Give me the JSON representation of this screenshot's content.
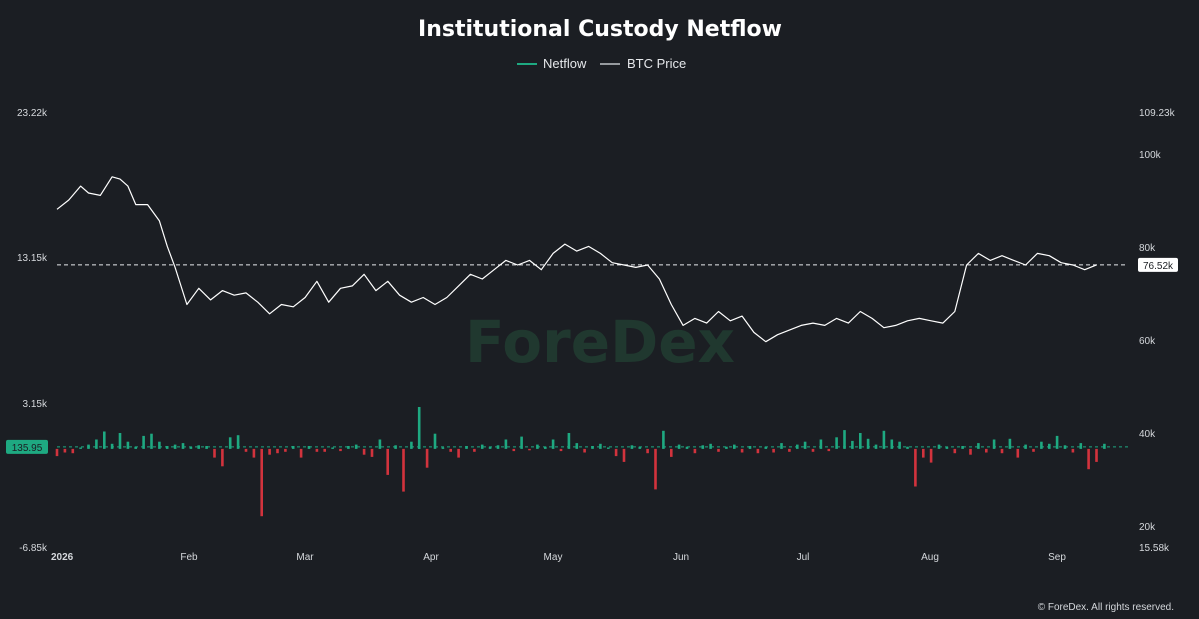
{
  "chart_data": {
    "type": "bar+line",
    "title": "Institutional Custody Netflow",
    "legend": [
      {
        "name": "Netflow",
        "color": "#1ea981"
      },
      {
        "name": "BTC Price",
        "color": "#bfc3c8"
      }
    ],
    "legend_placement": "top-center",
    "watermark": "ForeDex",
    "copyright": "© ForeDex. All rights reserved.",
    "x_start": "2026-01-01",
    "x_end": "2026-09-30",
    "x_tick_labels": [
      "2026",
      "Feb",
      "Mar",
      "Apr",
      "May",
      "Jun",
      "Jul",
      "Aug",
      "Sep"
    ],
    "left_axis": {
      "ticks": [
        "23.22k",
        "13.15k",
        "3.15k",
        "-6.85k"
      ],
      "range": [
        -6850,
        23220
      ]
    },
    "right_axis": {
      "ticks": [
        "109.23k",
        "100k",
        "80k",
        "60k",
        "40k",
        "20k",
        "15.58k"
      ],
      "range": [
        15580,
        109230
      ]
    },
    "current_netflow": {
      "value": 135.95,
      "label": "135.95",
      "color": "#1ea981"
    },
    "current_price": {
      "value": 76520,
      "label": "76.52k",
      "color": "#ffffff"
    },
    "colors": {
      "positive": "#1ea981",
      "negative": "#d2333d",
      "price_line": "#ffffff",
      "background": "#1b1e23"
    },
    "series": [
      {
        "name": "BTC Price",
        "axis": "right",
        "points": [
          [
            "2026-01-01",
            88500
          ],
          [
            "2026-01-04",
            90500
          ],
          [
            "2026-01-07",
            93500
          ],
          [
            "2026-01-09",
            92000
          ],
          [
            "2026-01-12",
            91500
          ],
          [
            "2026-01-15",
            95500
          ],
          [
            "2026-01-17",
            95000
          ],
          [
            "2026-01-19",
            93500
          ],
          [
            "2026-01-21",
            89500
          ],
          [
            "2026-01-24",
            89500
          ],
          [
            "2026-01-27",
            86000
          ],
          [
            "2026-01-29",
            80500
          ],
          [
            "2026-01-31",
            76000
          ],
          [
            "2026-02-03",
            68000
          ],
          [
            "2026-02-06",
            71500
          ],
          [
            "2026-02-09",
            69000
          ],
          [
            "2026-02-12",
            71000
          ],
          [
            "2026-02-15",
            70000
          ],
          [
            "2026-02-18",
            70500
          ],
          [
            "2026-02-21",
            68500
          ],
          [
            "2026-02-24",
            66000
          ],
          [
            "2026-02-27",
            68000
          ],
          [
            "2026-03-02",
            67500
          ],
          [
            "2026-03-05",
            69500
          ],
          [
            "2026-03-08",
            73000
          ],
          [
            "2026-03-11",
            68500
          ],
          [
            "2026-03-14",
            71500
          ],
          [
            "2026-03-17",
            72000
          ],
          [
            "2026-03-20",
            74500
          ],
          [
            "2026-03-23",
            71000
          ],
          [
            "2026-03-26",
            73000
          ],
          [
            "2026-03-29",
            70000
          ],
          [
            "2026-04-01",
            68500
          ],
          [
            "2026-04-04",
            69500
          ],
          [
            "2026-04-07",
            68000
          ],
          [
            "2026-04-10",
            69500
          ],
          [
            "2026-04-13",
            72000
          ],
          [
            "2026-04-16",
            74500
          ],
          [
            "2026-04-19",
            73500
          ],
          [
            "2026-04-22",
            75500
          ],
          [
            "2026-04-25",
            77500
          ],
          [
            "2026-04-28",
            76500
          ],
          [
            "2026-05-01",
            77500
          ],
          [
            "2026-05-04",
            75500
          ],
          [
            "2026-05-07",
            79000
          ],
          [
            "2026-05-10",
            81000
          ],
          [
            "2026-05-13",
            79500
          ],
          [
            "2026-05-16",
            80500
          ],
          [
            "2026-05-19",
            79000
          ],
          [
            "2026-05-22",
            77000
          ],
          [
            "2026-05-25",
            76500
          ],
          [
            "2026-05-28",
            76000
          ],
          [
            "2026-05-31",
            76500
          ],
          [
            "2026-06-03",
            73500
          ],
          [
            "2026-06-06",
            68000
          ],
          [
            "2026-06-09",
            63500
          ],
          [
            "2026-06-12",
            65000
          ],
          [
            "2026-06-15",
            64000
          ],
          [
            "2026-06-18",
            66500
          ],
          [
            "2026-06-21",
            64500
          ],
          [
            "2026-06-24",
            65500
          ],
          [
            "2026-06-27",
            62000
          ],
          [
            "2026-06-30",
            60000
          ],
          [
            "2026-07-03",
            61500
          ],
          [
            "2026-07-06",
            62500
          ],
          [
            "2026-07-09",
            63500
          ],
          [
            "2026-07-12",
            64000
          ],
          [
            "2026-07-15",
            63500
          ],
          [
            "2026-07-18",
            65000
          ],
          [
            "2026-07-21",
            64000
          ],
          [
            "2026-07-24",
            66500
          ],
          [
            "2026-07-27",
            65000
          ],
          [
            "2026-07-30",
            63000
          ],
          [
            "2026-08-02",
            63500
          ],
          [
            "2026-08-05",
            64500
          ],
          [
            "2026-08-08",
            65000
          ],
          [
            "2026-08-11",
            64500
          ],
          [
            "2026-08-14",
            64000
          ],
          [
            "2026-08-17",
            66500
          ],
          [
            "2026-08-20",
            76500
          ],
          [
            "2026-08-23",
            79000
          ],
          [
            "2026-08-26",
            77500
          ],
          [
            "2026-08-29",
            78500
          ],
          [
            "2026-09-01",
            77500
          ],
          [
            "2026-09-04",
            76500
          ],
          [
            "2026-09-07",
            79000
          ],
          [
            "2026-09-10",
            78500
          ],
          [
            "2026-09-13",
            77000
          ],
          [
            "2026-09-16",
            76500
          ],
          [
            "2026-09-19",
            75500
          ],
          [
            "2026-09-22",
            76520
          ]
        ]
      },
      {
        "name": "Netflow",
        "axis": "left",
        "type": "bar",
        "points": [
          [
            "2026-01-01",
            -500
          ],
          [
            "2026-01-03",
            -250
          ],
          [
            "2026-01-05",
            -300
          ],
          [
            "2026-01-07",
            100
          ],
          [
            "2026-01-09",
            300
          ],
          [
            "2026-01-11",
            650
          ],
          [
            "2026-01-13",
            1200
          ],
          [
            "2026-01-15",
            350
          ],
          [
            "2026-01-17",
            1100
          ],
          [
            "2026-01-19",
            500
          ],
          [
            "2026-01-21",
            150
          ],
          [
            "2026-01-23",
            900
          ],
          [
            "2026-01-25",
            1050
          ],
          [
            "2026-01-27",
            500
          ],
          [
            "2026-01-29",
            200
          ],
          [
            "2026-01-31",
            300
          ],
          [
            "2026-02-02",
            400
          ],
          [
            "2026-02-04",
            150
          ],
          [
            "2026-02-06",
            250
          ],
          [
            "2026-02-08",
            200
          ],
          [
            "2026-02-10",
            -600
          ],
          [
            "2026-02-12",
            -1200
          ],
          [
            "2026-02-14",
            800
          ],
          [
            "2026-02-16",
            950
          ],
          [
            "2026-02-18",
            -200
          ],
          [
            "2026-02-20",
            -600
          ],
          [
            "2026-02-22",
            -4650
          ],
          [
            "2026-02-24",
            -400
          ],
          [
            "2026-02-26",
            -300
          ],
          [
            "2026-02-28",
            -200
          ],
          [
            "2026-03-02",
            200
          ],
          [
            "2026-03-04",
            -600
          ],
          [
            "2026-03-06",
            200
          ],
          [
            "2026-03-08",
            -200
          ],
          [
            "2026-03-10",
            -200
          ],
          [
            "2026-03-12",
            100
          ],
          [
            "2026-03-14",
            -150
          ],
          [
            "2026-03-16",
            200
          ],
          [
            "2026-03-18",
            300
          ],
          [
            "2026-03-20",
            -400
          ],
          [
            "2026-03-22",
            -550
          ],
          [
            "2026-03-24",
            650
          ],
          [
            "2026-03-26",
            -1800
          ],
          [
            "2026-03-28",
            250
          ],
          [
            "2026-03-30",
            -2950
          ],
          [
            "2026-04-01",
            500
          ],
          [
            "2026-04-03",
            2900
          ],
          [
            "2026-04-05",
            -1300
          ],
          [
            "2026-04-07",
            1050
          ],
          [
            "2026-04-09",
            100
          ],
          [
            "2026-04-11",
            -200
          ],
          [
            "2026-04-13",
            -600
          ],
          [
            "2026-04-15",
            200
          ],
          [
            "2026-04-17",
            -200
          ],
          [
            "2026-04-19",
            300
          ],
          [
            "2026-04-21",
            150
          ],
          [
            "2026-04-23",
            250
          ],
          [
            "2026-04-25",
            650
          ],
          [
            "2026-04-27",
            -150
          ],
          [
            "2026-04-29",
            850
          ],
          [
            "2026-05-01",
            -100
          ],
          [
            "2026-05-03",
            300
          ],
          [
            "2026-05-05",
            150
          ],
          [
            "2026-05-07",
            650
          ],
          [
            "2026-05-09",
            -150
          ],
          [
            "2026-05-11",
            1100
          ],
          [
            "2026-05-13",
            400
          ],
          [
            "2026-05-15",
            -250
          ],
          [
            "2026-05-17",
            200
          ],
          [
            "2026-05-19",
            350
          ],
          [
            "2026-05-21",
            100
          ],
          [
            "2026-05-23",
            -500
          ],
          [
            "2026-05-25",
            -900
          ],
          [
            "2026-05-27",
            250
          ],
          [
            "2026-05-29",
            150
          ],
          [
            "2026-05-31",
            -300
          ],
          [
            "2026-06-02",
            -2800
          ],
          [
            "2026-06-04",
            1250
          ],
          [
            "2026-06-06",
            -550
          ],
          [
            "2026-06-08",
            300
          ],
          [
            "2026-06-10",
            150
          ],
          [
            "2026-06-12",
            -300
          ],
          [
            "2026-06-14",
            250
          ],
          [
            "2026-06-16",
            350
          ],
          [
            "2026-06-18",
            -200
          ],
          [
            "2026-06-20",
            150
          ],
          [
            "2026-06-22",
            300
          ],
          [
            "2026-06-24",
            -250
          ],
          [
            "2026-06-26",
            200
          ],
          [
            "2026-06-28",
            -300
          ],
          [
            "2026-06-30",
            150
          ],
          [
            "2026-07-02",
            -250
          ],
          [
            "2026-07-04",
            400
          ],
          [
            "2026-07-06",
            -200
          ],
          [
            "2026-07-08",
            300
          ],
          [
            "2026-07-10",
            500
          ],
          [
            "2026-07-12",
            -200
          ],
          [
            "2026-07-14",
            650
          ],
          [
            "2026-07-16",
            -150
          ],
          [
            "2026-07-18",
            800
          ],
          [
            "2026-07-20",
            1300
          ],
          [
            "2026-07-22",
            550
          ],
          [
            "2026-07-24",
            1100
          ],
          [
            "2026-07-26",
            700
          ],
          [
            "2026-07-28",
            300
          ],
          [
            "2026-07-30",
            1250
          ],
          [
            "2026-08-01",
            650
          ],
          [
            "2026-08-03",
            500
          ],
          [
            "2026-08-05",
            150
          ],
          [
            "2026-08-07",
            -2600
          ],
          [
            "2026-08-09",
            -600
          ],
          [
            "2026-08-11",
            -950
          ],
          [
            "2026-08-13",
            300
          ],
          [
            "2026-08-15",
            150
          ],
          [
            "2026-08-17",
            -300
          ],
          [
            "2026-08-19",
            200
          ],
          [
            "2026-08-21",
            -400
          ],
          [
            "2026-08-23",
            400
          ],
          [
            "2026-08-25",
            -250
          ],
          [
            "2026-08-27",
            650
          ],
          [
            "2026-08-29",
            -300
          ],
          [
            "2026-08-31",
            700
          ],
          [
            "2026-09-02",
            -600
          ],
          [
            "2026-09-04",
            300
          ],
          [
            "2026-09-06",
            -200
          ],
          [
            "2026-09-08",
            500
          ],
          [
            "2026-09-10",
            350
          ],
          [
            "2026-09-12",
            900
          ],
          [
            "2026-09-14",
            250
          ],
          [
            "2026-09-16",
            -250
          ],
          [
            "2026-09-18",
            400
          ],
          [
            "2026-09-20",
            -1400
          ],
          [
            "2026-09-22",
            -900
          ],
          [
            "2026-09-24",
            350
          ]
        ]
      }
    ]
  }
}
